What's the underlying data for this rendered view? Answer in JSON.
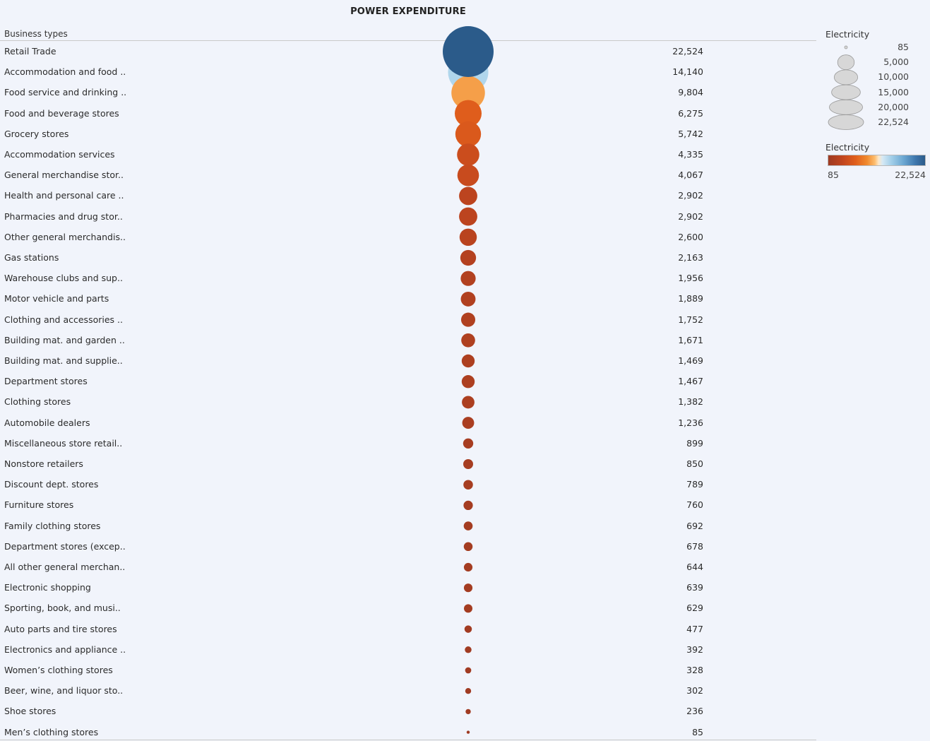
{
  "title": "POWER EXPENDITURE",
  "column_header": "Business types",
  "legend": {
    "size_title": "Electricity",
    "size_values": [
      "85",
      "5,000",
      "10,000",
      "15,000",
      "20,000",
      "22,524"
    ],
    "color_title": "Electricity",
    "color_min": "85",
    "color_max": "22,524"
  },
  "chart_data": {
    "type": "scatter",
    "title": "POWER EXPENDITURE",
    "xlabel": "Business types",
    "measure": "Electricity",
    "categories": [
      "Retail Trade",
      "Accommodation and food ..",
      "Food service and drinking ..",
      "Food and beverage stores",
      "Grocery stores",
      "Accommodation services",
      "General merchandise stor..",
      "Health and personal care ..",
      "Pharmacies and drug stor..",
      "Other general merchandis..",
      "Gas stations",
      "Warehouse clubs and sup..",
      "Motor vehicle and parts",
      "Clothing and accessories ..",
      "Building mat. and garden ..",
      "Building mat. and supplie..",
      "Department stores",
      "Clothing stores",
      "Automobile dealers",
      "Miscellaneous store retail..",
      "Nonstore retailers",
      "Discount dept. stores",
      "Furniture stores",
      "Family clothing stores",
      "Department stores (excep..",
      "All other general merchan..",
      "Electronic shopping",
      "Sporting, book, and  musi..",
      "Auto parts and tire stores",
      "Electronics and appliance ..",
      "Women’s clothing stores",
      "Beer, wine, and liquor sto..",
      "Shoe stores",
      "Men’s clothing stores"
    ],
    "values": [
      22524,
      14140,
      9804,
      6275,
      5742,
      4335,
      4067,
      2902,
      2902,
      2600,
      2163,
      1956,
      1889,
      1752,
      1671,
      1469,
      1467,
      1382,
      1236,
      899,
      850,
      789,
      760,
      692,
      678,
      644,
      639,
      629,
      477,
      392,
      328,
      302,
      236,
      85
    ],
    "value_labels": [
      "22,524",
      "14,140",
      "9,804",
      "6,275",
      "5,742",
      "4,335",
      "4,067",
      "2,902",
      "2,902",
      "2,600",
      "2,163",
      "1,956",
      "1,889",
      "1,752",
      "1,671",
      "1,469",
      "1,467",
      "1,382",
      "1,236",
      "899",
      "850",
      "789",
      "760",
      "692",
      "678",
      "644",
      "639",
      "629",
      "477",
      "392",
      "328",
      "302",
      "236",
      "85"
    ],
    "size_range": [
      85,
      22524
    ],
    "color_range": [
      85,
      22524
    ],
    "color_scheme": "diverging orange-blue",
    "grid": false,
    "legend_position": "right"
  }
}
